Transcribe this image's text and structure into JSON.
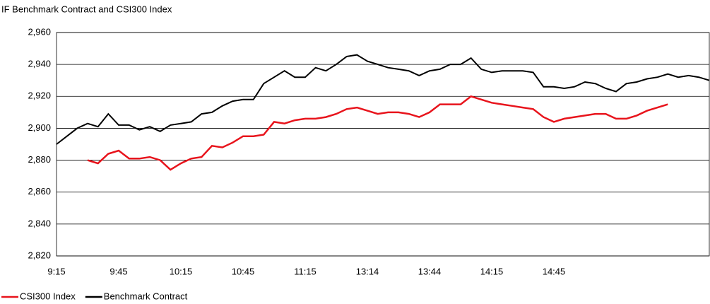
{
  "chart_data": {
    "type": "line",
    "title": "IF Benchmark Contract and CSI300 Index",
    "categories": [
      "9:15",
      null,
      null,
      null,
      null,
      null,
      "9:45",
      null,
      null,
      null,
      null,
      null,
      "10:15",
      null,
      null,
      null,
      null,
      null,
      "10:45",
      null,
      null,
      null,
      null,
      null,
      "11:15",
      null,
      null,
      null,
      null,
      null,
      "13:14",
      null,
      null,
      null,
      null,
      null,
      "13:44",
      null,
      null,
      null,
      null,
      null,
      "14:15",
      null,
      null,
      null,
      null,
      null,
      "14:45",
      null,
      null,
      null,
      null,
      null,
      null,
      null,
      null,
      null,
      null,
      null,
      null,
      null,
      null,
      null
    ],
    "series": [
      {
        "name": "CSI300 Index",
        "color": "#e8141c",
        "values": [
          null,
          null,
          null,
          2880,
          2878,
          2884,
          2886,
          2881,
          2881,
          2882,
          2880,
          2874,
          2878,
          2881,
          2882,
          2889,
          2888,
          2891,
          2895,
          2895,
          2896,
          2904,
          2903,
          2905,
          2906,
          2906,
          2907,
          2909,
          2912,
          2913,
          2911,
          2909,
          2910,
          2910,
          2909,
          2907,
          2910,
          2915,
          2915,
          2915,
          2920,
          2918,
          2916,
          2915,
          2914,
          2913,
          2912,
          2907,
          2904,
          2906,
          2907,
          2908,
          2909,
          2909,
          2906,
          2906,
          2908,
          2911,
          2913,
          2915,
          null,
          null,
          null,
          null
        ]
      },
      {
        "name": "Benchmark Contract",
        "color": "#000000",
        "values": [
          2890,
          2895,
          2900,
          2903,
          2901,
          2909,
          2902,
          2902,
          2899,
          2901,
          2898,
          2902,
          2903,
          2904,
          2909,
          2910,
          2914,
          2917,
          2918,
          2918,
          2928,
          2932,
          2936,
          2932,
          2932,
          2938,
          2936,
          2940,
          2945,
          2946,
          2942,
          2940,
          2938,
          2937,
          2936,
          2933,
          2936,
          2937,
          2940,
          2940,
          2944,
          2937,
          2935,
          2936,
          2936,
          2936,
          2935,
          2926,
          2926,
          2925,
          2926,
          2929,
          2928,
          2925,
          2923,
          2928,
          2929,
          2931,
          2932,
          2934,
          2932,
          2933,
          2932,
          2930
        ]
      }
    ],
    "ylim": [
      2820,
      2960
    ],
    "yticks": [
      {
        "value": 2820,
        "label": "2,820"
      },
      {
        "value": 2840,
        "label": "2,840"
      },
      {
        "value": 2860,
        "label": "2,860"
      },
      {
        "value": 2880,
        "label": "2,880"
      },
      {
        "value": 2900,
        "label": "2,900"
      },
      {
        "value": 2920,
        "label": "2,920"
      },
      {
        "value": 2940,
        "label": "2,940"
      },
      {
        "value": 2960,
        "label": "2,960"
      }
    ],
    "grid": true,
    "legend": "bottom-left"
  }
}
